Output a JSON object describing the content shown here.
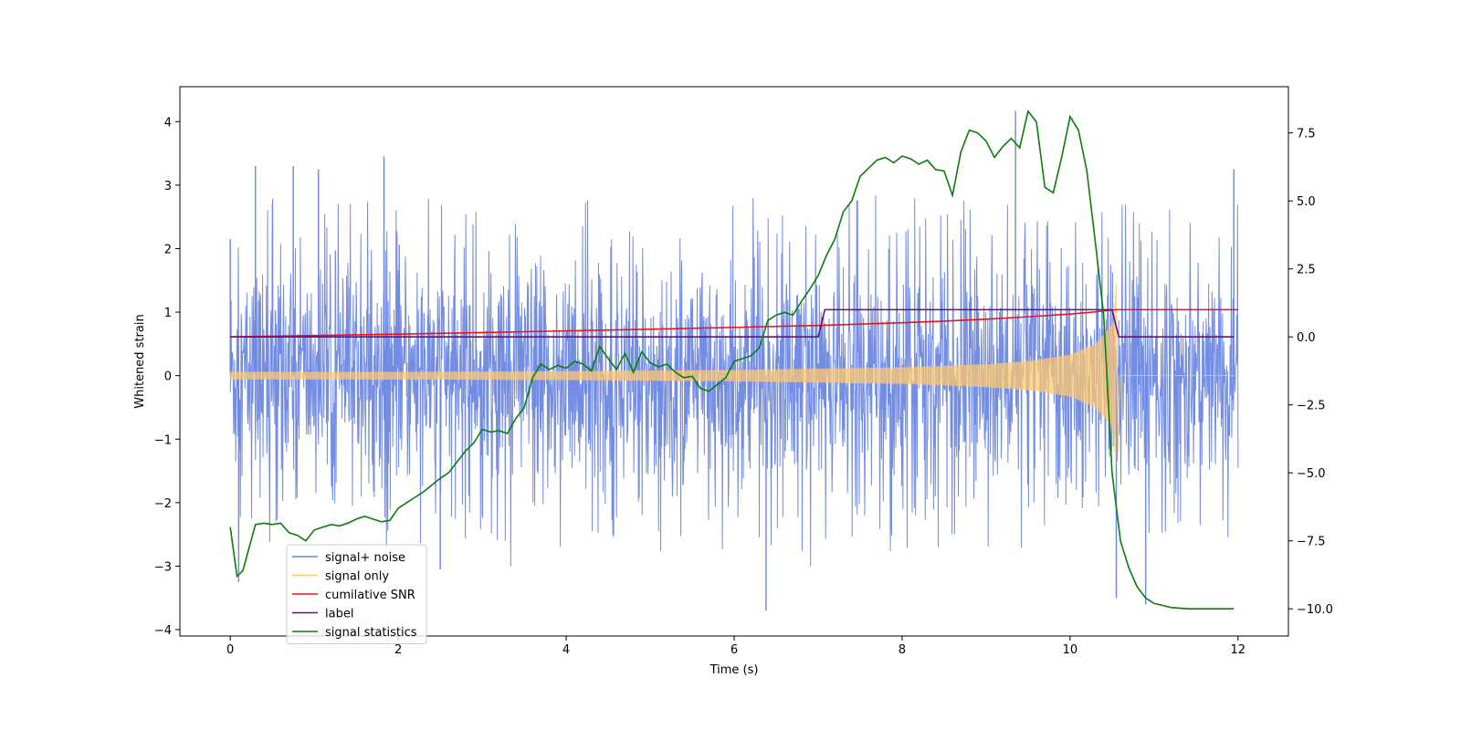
{
  "chart_data": {
    "type": "line",
    "title": "",
    "xlabel": "Time (s)",
    "ylabel": "Whitened strain",
    "y2label": "",
    "xlim": [
      -0.6,
      12.6
    ],
    "ylim": [
      -4.1,
      4.55
    ],
    "y2lim": [
      -11.0,
      9.2
    ],
    "xticks": [
      0,
      2,
      4,
      6,
      8,
      10,
      12
    ],
    "yticks": [
      -4,
      -3,
      -2,
      -1,
      0,
      1,
      2,
      3,
      4
    ],
    "y2ticks": [
      -10.0,
      -7.5,
      -5.0,
      -2.5,
      0.0,
      2.5,
      5.0,
      7.5
    ],
    "xtick_labels": [
      "0",
      "2",
      "4",
      "6",
      "8",
      "10",
      "12"
    ],
    "ytick_labels": [
      "−4",
      "−3",
      "−2",
      "−1",
      "0",
      "1",
      "2",
      "3",
      "4"
    ],
    "y2tick_labels": [
      "−10.0",
      "−7.5",
      "−5.0",
      "−2.5",
      "0.0",
      "2.5",
      "5.0",
      "7.5"
    ],
    "grid": false,
    "legend_position": "lower-left",
    "legend": [
      {
        "label": "signal+ noise",
        "color": "#6b86e3"
      },
      {
        "label": "signal only",
        "color": "#ffc870"
      },
      {
        "label": "cumilative SNR",
        "color": "#e8141c"
      },
      {
        "label": "label",
        "color": "#6a0f7a"
      },
      {
        "label": "signal statistics",
        "color": "#0a7d0a"
      }
    ],
    "series": [
      {
        "name": "signal+ noise",
        "axis": "left",
        "color": "#6b86e3",
        "style": "noise-band",
        "x_range": [
          0,
          12
        ],
        "typical_range": [
          -2.1,
          2.1
        ],
        "peak_max": 4.17,
        "peak_min": -3.7,
        "peaks": [
          [
            0.0,
            2.15
          ],
          [
            0.3,
            3.3
          ],
          [
            0.75,
            3.3
          ],
          [
            1.05,
            3.25
          ],
          [
            1.83,
            3.45
          ],
          [
            0.1,
            -3.25
          ],
          [
            2.5,
            -3.05
          ],
          [
            6.38,
            -3.7
          ],
          [
            9.35,
            4.17
          ],
          [
            11.95,
            3.25
          ],
          [
            10.55,
            -3.5
          ],
          [
            10.9,
            -3.6
          ]
        ]
      },
      {
        "name": "signal only",
        "axis": "left",
        "color": "#ffc870",
        "style": "chirp",
        "x": [
          0,
          2,
          4,
          6,
          8,
          9,
          9.5,
          10,
          10.3,
          10.5,
          10.55,
          12
        ],
        "amplitude": [
          0.06,
          0.06,
          0.07,
          0.09,
          0.13,
          0.18,
          0.23,
          0.33,
          0.5,
          0.8,
          1.45,
          0
        ]
      },
      {
        "name": "cumilative SNR",
        "axis": "right",
        "color": "#e8141c",
        "x": [
          0,
          1,
          2,
          3,
          4,
          5,
          6,
          7,
          8,
          8.5,
          9,
          9.5,
          10,
          10.3,
          10.55,
          12
        ],
        "values": [
          0.0,
          0.05,
          0.1,
          0.16,
          0.22,
          0.28,
          0.35,
          0.42,
          0.52,
          0.58,
          0.65,
          0.74,
          0.84,
          0.92,
          1.0,
          1.0
        ]
      },
      {
        "name": "label",
        "axis": "right",
        "color": "#6a0f7a",
        "x": [
          0,
          7.0,
          7.08,
          10.5,
          10.58,
          11.95
        ],
        "values": [
          0,
          0,
          1,
          1,
          0,
          0
        ]
      },
      {
        "name": "signal statistics",
        "axis": "right",
        "color": "#0a7d0a",
        "x": [
          0,
          0.08,
          0.15,
          0.22,
          0.3,
          0.4,
          0.5,
          0.6,
          0.7,
          0.8,
          0.9,
          1.0,
          1.1,
          1.2,
          1.3,
          1.4,
          1.5,
          1.6,
          1.7,
          1.8,
          1.9,
          2.0,
          2.1,
          2.2,
          2.3,
          2.4,
          2.5,
          2.6,
          2.7,
          2.8,
          2.9,
          3.0,
          3.1,
          3.2,
          3.3,
          3.4,
          3.5,
          3.6,
          3.7,
          3.8,
          3.9,
          4.0,
          4.1,
          4.2,
          4.3,
          4.4,
          4.5,
          4.6,
          4.7,
          4.8,
          4.9,
          5.0,
          5.1,
          5.2,
          5.3,
          5.4,
          5.5,
          5.6,
          5.7,
          5.8,
          5.9,
          6.0,
          6.1,
          6.2,
          6.3,
          6.4,
          6.5,
          6.6,
          6.7,
          6.8,
          6.9,
          7.0,
          7.1,
          7.2,
          7.3,
          7.4,
          7.5,
          7.6,
          7.7,
          7.8,
          7.9,
          8.0,
          8.1,
          8.2,
          8.3,
          8.4,
          8.5,
          8.6,
          8.7,
          8.8,
          8.9,
          9.0,
          9.1,
          9.2,
          9.3,
          9.4,
          9.5,
          9.6,
          9.7,
          9.8,
          9.9,
          10.0,
          10.1,
          10.2,
          10.3,
          10.4,
          10.5,
          10.6,
          10.7,
          10.8,
          10.9,
          11.0,
          11.2,
          11.4,
          11.6,
          11.8,
          11.95
        ],
        "values": [
          -7.0,
          -8.8,
          -8.6,
          -7.8,
          -6.9,
          -6.85,
          -6.9,
          -6.85,
          -7.2,
          -7.3,
          -7.5,
          -7.1,
          -7.0,
          -6.9,
          -6.95,
          -6.85,
          -6.7,
          -6.6,
          -6.7,
          -6.8,
          -6.75,
          -6.3,
          -6.1,
          -5.9,
          -5.7,
          -5.45,
          -5.2,
          -5.0,
          -4.6,
          -4.2,
          -3.9,
          -3.4,
          -3.5,
          -3.45,
          -3.55,
          -3.0,
          -2.6,
          -1.5,
          -1.0,
          -1.2,
          -1.05,
          -1.15,
          -0.9,
          -1.0,
          -1.25,
          -0.35,
          -0.8,
          -1.2,
          -0.6,
          -1.3,
          -0.55,
          -0.95,
          -1.1,
          -1.0,
          -1.3,
          -1.5,
          -1.45,
          -1.9,
          -2.0,
          -1.75,
          -1.5,
          -0.9,
          -0.8,
          -0.7,
          -0.4,
          0.6,
          0.8,
          0.9,
          0.8,
          1.3,
          1.75,
          2.25,
          3.0,
          3.6,
          4.6,
          5.0,
          5.9,
          6.2,
          6.5,
          6.6,
          6.4,
          6.65,
          6.55,
          6.35,
          6.5,
          6.15,
          6.1,
          5.2,
          6.8,
          7.6,
          7.5,
          7.2,
          6.6,
          7.0,
          7.3,
          6.95,
          8.3,
          7.9,
          5.5,
          5.3,
          6.6,
          8.1,
          7.6,
          6.1,
          3.5,
          0.8,
          -5.0,
          -7.5,
          -8.5,
          -9.2,
          -9.6,
          -9.8,
          -9.95,
          -10.0,
          -10.0,
          -10.0,
          -10.0
        ]
      }
    ]
  }
}
